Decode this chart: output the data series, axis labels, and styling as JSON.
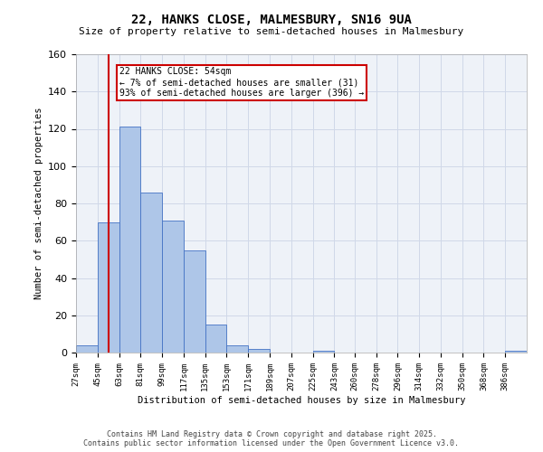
{
  "title1": "22, HANKS CLOSE, MALMESBURY, SN16 9UA",
  "title2": "Size of property relative to semi-detached houses in Malmesbury",
  "xlabel": "Distribution of semi-detached houses by size in Malmesbury",
  "ylabel": "Number of semi-detached properties",
  "categories": [
    "27sqm",
    "45sqm",
    "63sqm",
    "81sqm",
    "99sqm",
    "117sqm",
    "135sqm",
    "153sqm",
    "171sqm",
    "189sqm",
    "207sqm",
    "225sqm",
    "243sqm",
    "260sqm",
    "278sqm",
    "296sqm",
    "314sqm",
    "332sqm",
    "350sqm",
    "368sqm",
    "386sqm"
  ],
  "values": [
    4,
    70,
    121,
    86,
    71,
    55,
    15,
    4,
    2,
    0,
    0,
    1,
    0,
    0,
    0,
    0,
    0,
    0,
    0,
    0,
    1
  ],
  "bar_color": "#aec6e8",
  "bar_edge_color": "#4472c4",
  "property_line_x": 54,
  "bin_edges": [
    27,
    45,
    63,
    81,
    99,
    117,
    135,
    153,
    171,
    189,
    207,
    225,
    243,
    260,
    278,
    296,
    314,
    332,
    350,
    368,
    386,
    404
  ],
  "annotation_text": "22 HANKS CLOSE: 54sqm\n← 7% of semi-detached houses are smaller (31)\n93% of semi-detached houses are larger (396) →",
  "annotation_box_color": "#ffffff",
  "annotation_border_color": "#cc0000",
  "red_line_color": "#cc0000",
  "ylim": [
    0,
    160
  ],
  "yticks": [
    0,
    20,
    40,
    60,
    80,
    100,
    120,
    140,
    160
  ],
  "grid_color": "#d0d8e8",
  "bg_color": "#eef2f8",
  "footer1": "Contains HM Land Registry data © Crown copyright and database right 2025.",
  "footer2": "Contains public sector information licensed under the Open Government Licence v3.0."
}
